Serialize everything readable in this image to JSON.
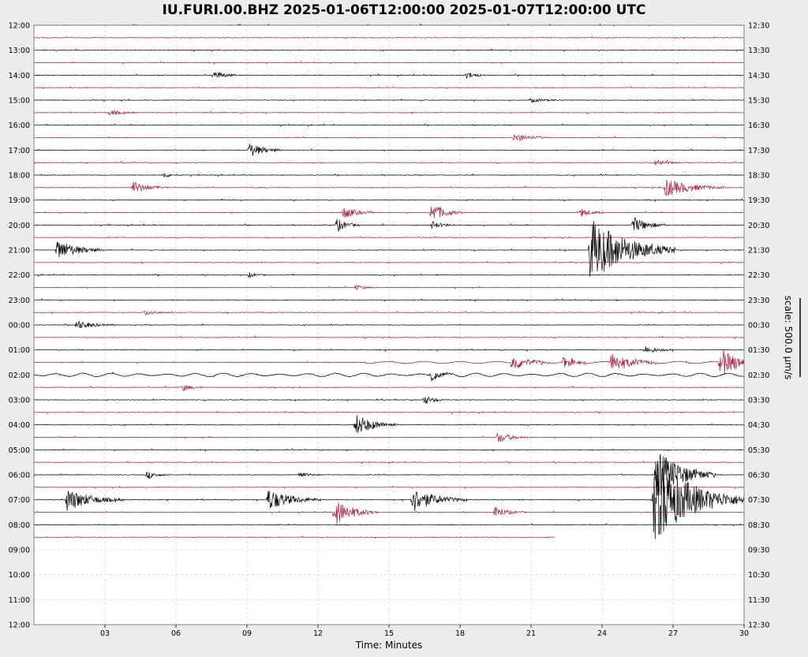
{
  "chart_data": {
    "type": "line",
    "chart_kind": "helicorder",
    "title": "IU.FURI.00.BHZ 2025-01-06T12:00:00 2025-01-07T12:00:00 UTC",
    "xlabel": "Time: Minutes",
    "scale_label": "scale: 500.0 μm/s",
    "xlim": [
      0,
      30
    ],
    "x_ticks": [
      "03",
      "06",
      "09",
      "12",
      "15",
      "18",
      "21",
      "24",
      "27",
      "30"
    ],
    "left_ticks": [
      "12:00",
      "13:00",
      "14:00",
      "15:00",
      "16:00",
      "17:00",
      "18:00",
      "19:00",
      "20:00",
      "21:00",
      "22:00",
      "23:00",
      "00:00",
      "01:00",
      "02:00",
      "03:00",
      "04:00",
      "05:00",
      "06:00",
      "07:00",
      "08:00",
      "09:00",
      "10:00",
      "11:00",
      "12:00"
    ],
    "right_ticks": [
      "12:30",
      "13:30",
      "14:30",
      "15:30",
      "16:30",
      "17:30",
      "18:30",
      "19:30",
      "20:30",
      "21:30",
      "22:30",
      "23:30",
      "00:30",
      "01:30",
      "02:30",
      "03:30",
      "04:30",
      "05:30",
      "06:30",
      "07:30",
      "08:30",
      "09:30",
      "10:30",
      "11:30",
      "12:30"
    ],
    "line_minutes": 30,
    "trace_count": 42,
    "last_trace_end_minute": 22,
    "grid": true,
    "colors": {
      "trace_a": "#000000",
      "trace_b": "#a8183c",
      "grid": "#c8c8c8",
      "frame": "#808080",
      "background": "#ffffff"
    },
    "events": [
      {
        "line": 4,
        "minute": 7.6,
        "amplitude": 0.35,
        "duration": 1.0
      },
      {
        "line": 4,
        "minute": 18.3,
        "amplitude": 0.25,
        "duration": 0.9
      },
      {
        "line": 6,
        "minute": 21.0,
        "amplitude": 0.15,
        "duration": 1.5
      },
      {
        "line": 7,
        "minute": 3.2,
        "amplitude": 0.2,
        "duration": 1.2
      },
      {
        "line": 9,
        "minute": 20.3,
        "amplitude": 0.3,
        "duration": 1.5
      },
      {
        "line": 10,
        "minute": 9.1,
        "amplitude": 0.55,
        "duration": 1.4
      },
      {
        "line": 11,
        "minute": 26.3,
        "amplitude": 0.3,
        "duration": 1.0
      },
      {
        "line": 12,
        "minute": 5.5,
        "amplitude": 0.2,
        "duration": 0.7
      },
      {
        "line": 13,
        "minute": 4.2,
        "amplitude": 0.45,
        "duration": 1.5
      },
      {
        "line": 13,
        "minute": 26.7,
        "amplitude": 0.65,
        "duration": 2.5
      },
      {
        "line": 15,
        "minute": 13.1,
        "amplitude": 0.45,
        "duration": 1.3
      },
      {
        "line": 15,
        "minute": 16.8,
        "amplitude": 0.75,
        "duration": 1.3
      },
      {
        "line": 15,
        "minute": 23.1,
        "amplitude": 0.35,
        "duration": 1.0
      },
      {
        "line": 16,
        "minute": 12.8,
        "amplitude": 0.5,
        "duration": 1.0
      },
      {
        "line": 16,
        "minute": 16.8,
        "amplitude": 0.3,
        "duration": 1.0
      },
      {
        "line": 16,
        "minute": 25.3,
        "amplitude": 0.6,
        "duration": 1.5
      },
      {
        "line": 18,
        "minute": 1.0,
        "amplitude": 0.75,
        "duration": 2.0
      },
      {
        "line": 18,
        "minute": 23.5,
        "amplitude": 2.4,
        "duration": 3.6
      },
      {
        "line": 20,
        "minute": 9.1,
        "amplitude": 0.2,
        "duration": 0.7
      },
      {
        "line": 21,
        "minute": 13.6,
        "amplitude": 0.2,
        "duration": 0.8
      },
      {
        "line": 23,
        "minute": 4.7,
        "amplitude": 0.2,
        "duration": 1.0
      },
      {
        "line": 24,
        "minute": 1.8,
        "amplitude": 0.35,
        "duration": 1.5
      },
      {
        "line": 26,
        "minute": 25.8,
        "amplitude": 0.3,
        "duration": 1.2
      },
      {
        "line": 27,
        "minute": 20.2,
        "amplitude": 0.6,
        "duration": 1.5
      },
      {
        "line": 27,
        "minute": 22.4,
        "amplitude": 0.5,
        "duration": 1.0
      },
      {
        "line": 27,
        "minute": 24.4,
        "amplitude": 0.7,
        "duration": 2.0
      },
      {
        "line": 27,
        "minute": 29.0,
        "amplitude": 1.1,
        "duration": 1.8
      },
      {
        "line": 28,
        "minute": 16.8,
        "amplitude": 0.35,
        "duration": 1.0
      },
      {
        "line": 29,
        "minute": 6.3,
        "amplitude": 0.25,
        "duration": 0.9
      },
      {
        "line": 30,
        "minute": 16.5,
        "amplitude": 0.35,
        "duration": 0.9
      },
      {
        "line": 32,
        "minute": 13.6,
        "amplitude": 0.8,
        "duration": 1.8
      },
      {
        "line": 33,
        "minute": 19.6,
        "amplitude": 0.4,
        "duration": 1.3
      },
      {
        "line": 36,
        "minute": 4.8,
        "amplitude": 0.3,
        "duration": 0.9
      },
      {
        "line": 36,
        "minute": 11.2,
        "amplitude": 0.25,
        "duration": 1.0
      },
      {
        "line": 36,
        "minute": 26.3,
        "amplitude": 1.9,
        "duration": 2.5
      },
      {
        "line": 38,
        "minute": 1.4,
        "amplitude": 0.85,
        "duration": 2.4
      },
      {
        "line": 38,
        "minute": 9.9,
        "amplitude": 0.8,
        "duration": 2.3
      },
      {
        "line": 38,
        "minute": 16.0,
        "amplitude": 0.9,
        "duration": 2.3
      },
      {
        "line": 38,
        "minute": 26.2,
        "amplitude": 3.2,
        "duration": 3.8
      },
      {
        "line": 39,
        "minute": 12.7,
        "amplitude": 1.0,
        "duration": 1.8
      },
      {
        "line": 39,
        "minute": 19.5,
        "amplitude": 0.4,
        "duration": 1.3
      }
    ]
  }
}
